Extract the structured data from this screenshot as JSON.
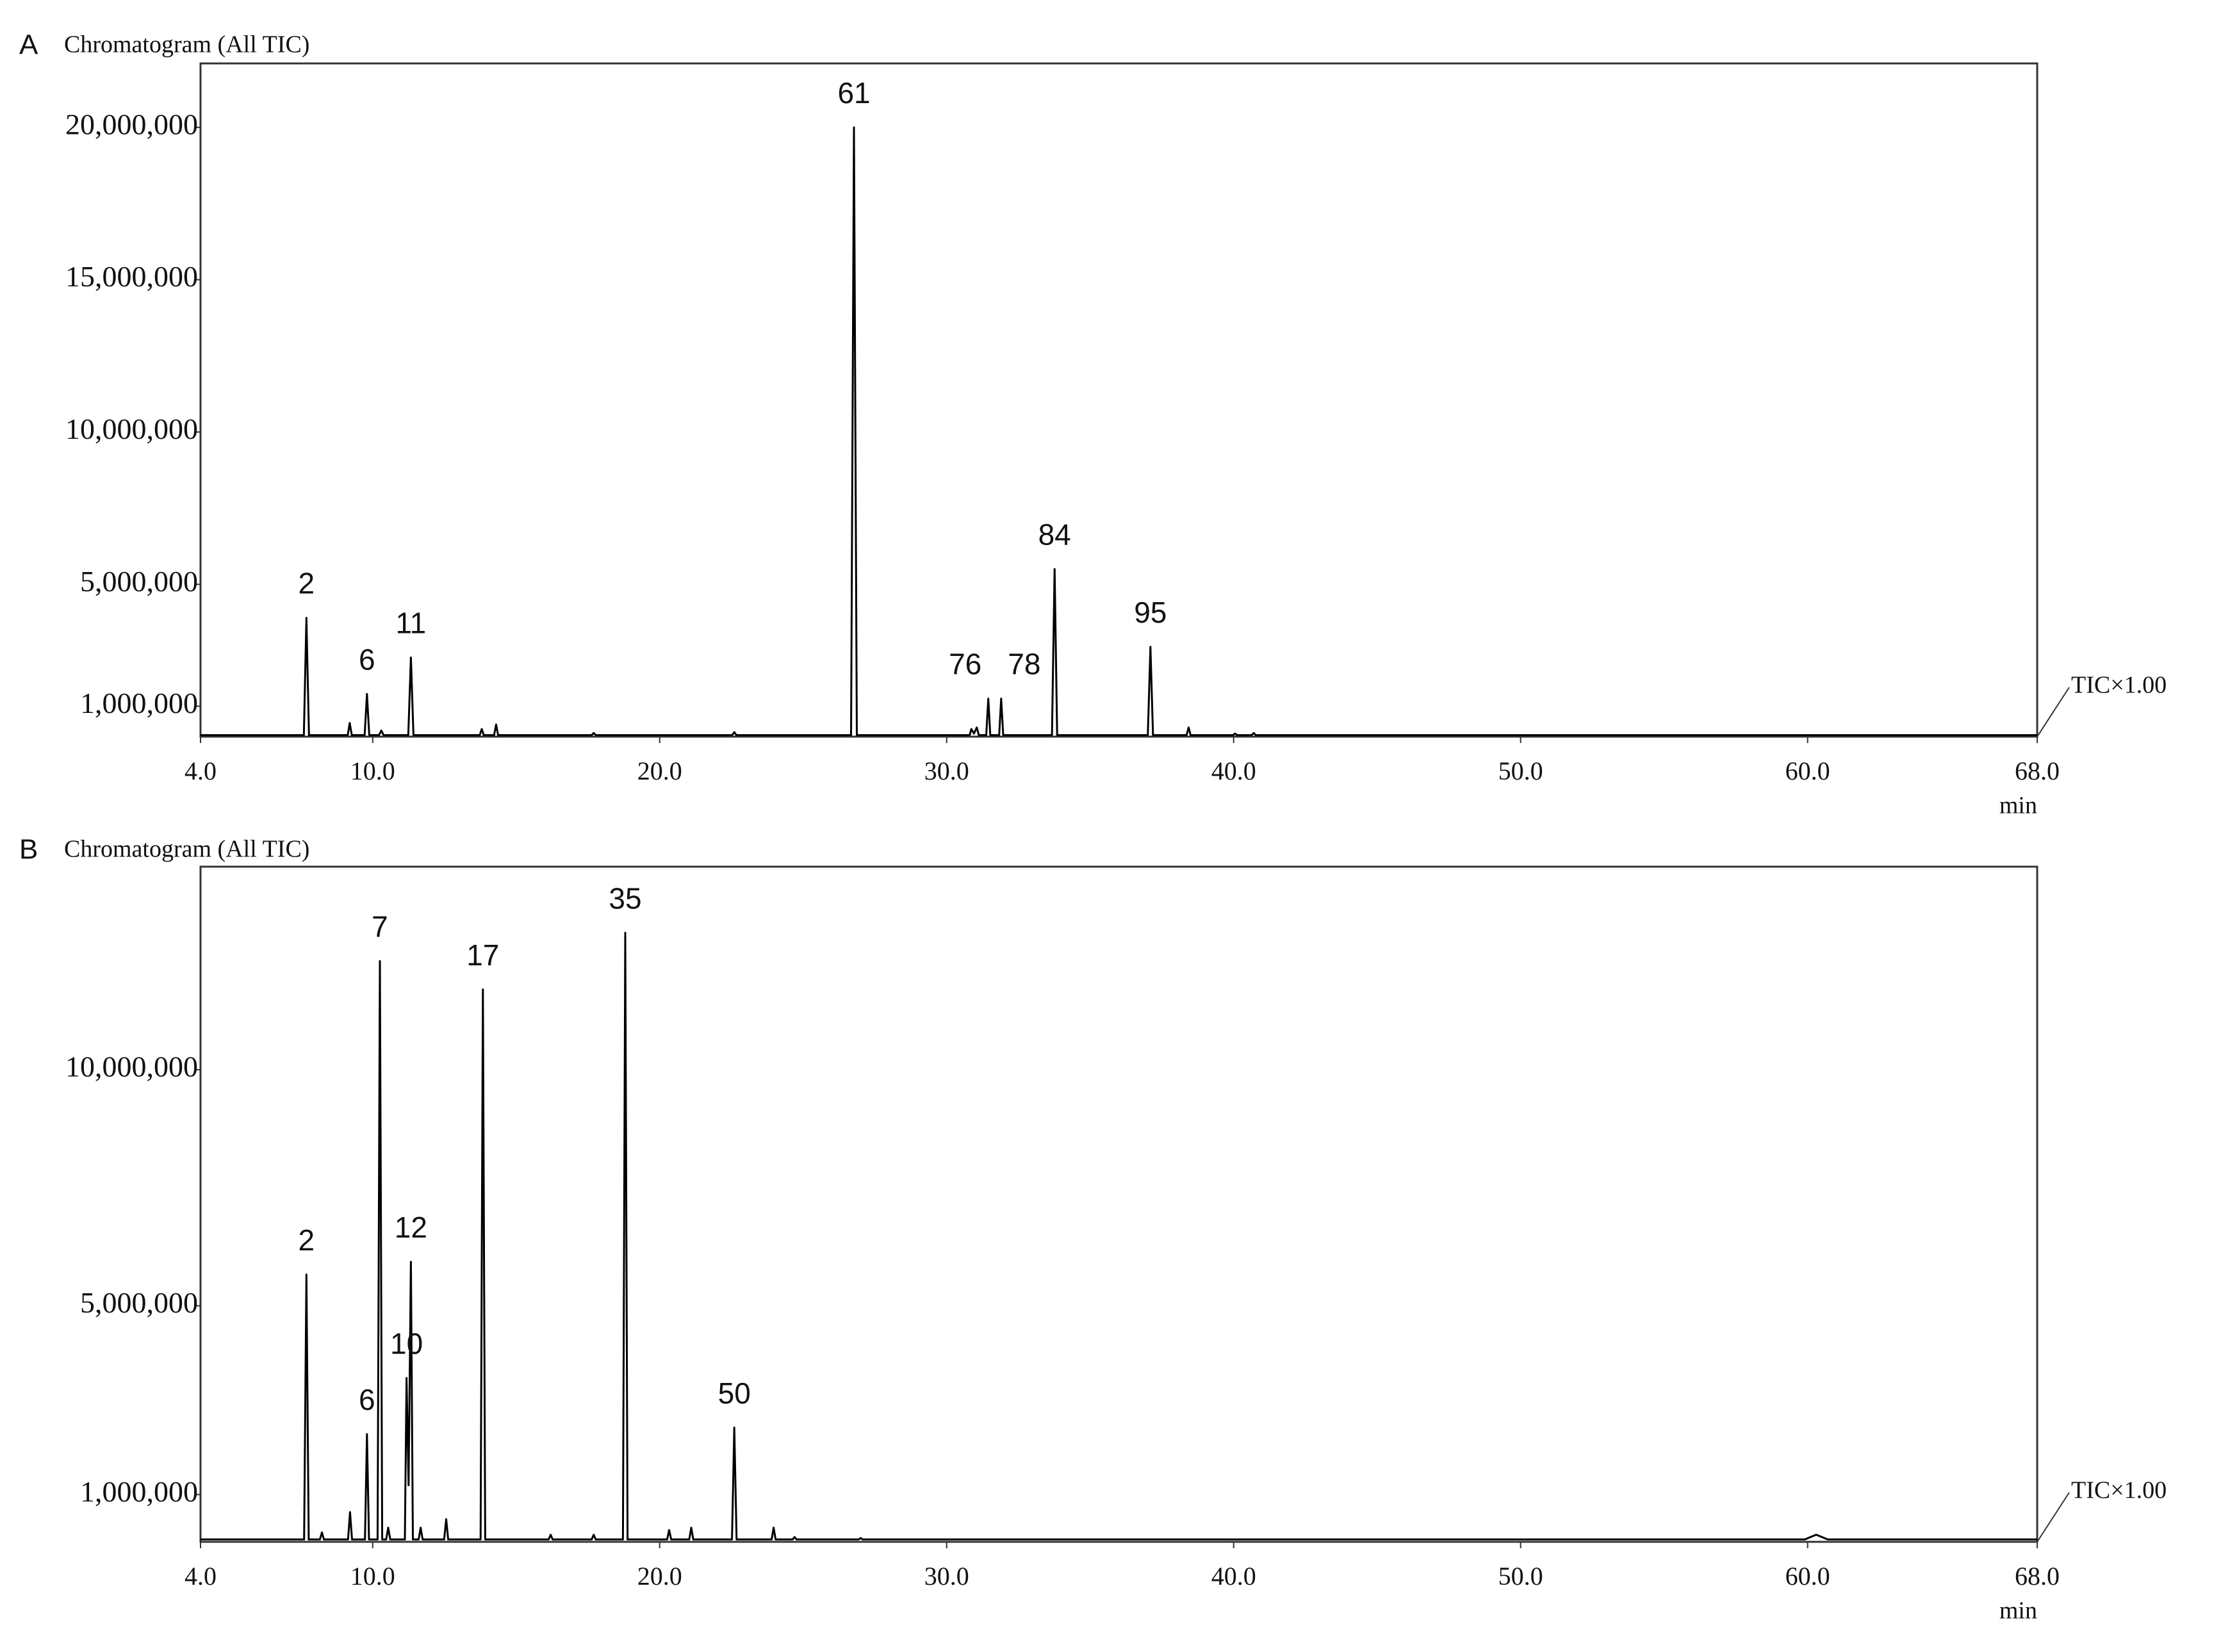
{
  "chart_data": [
    {
      "type": "line",
      "panel": "A",
      "title": "Chromatogram (All TIC)",
      "x_label": "min",
      "trace_label": "TIC×1.00",
      "color": "#000000",
      "xlim": [
        4,
        68
      ],
      "xticks": [
        {
          "value": 4,
          "label": "4.0"
        },
        {
          "value": 10,
          "label": "10.0"
        },
        {
          "value": 20,
          "label": "20.0"
        },
        {
          "value": 30,
          "label": "30.0"
        },
        {
          "value": 40,
          "label": "40.0"
        },
        {
          "value": 50,
          "label": "50.0"
        },
        {
          "value": 60,
          "label": "60.0"
        },
        {
          "value": 68,
          "label": "68.0"
        }
      ],
      "ylim": [
        0,
        22100000
      ],
      "yticks": [
        {
          "value": 1000000,
          "label": "1,000,000"
        },
        {
          "value": 5000000,
          "label": "5,000,000"
        },
        {
          "value": 10000000,
          "label": "10,000,000"
        },
        {
          "value": 15000000,
          "label": "15,000,000"
        },
        {
          "value": 20000000,
          "label": "20,000,000"
        }
      ],
      "x": [
        4.0,
        7.6,
        7.69,
        7.78,
        9.13,
        9.2,
        9.27,
        9.72,
        9.8,
        9.88,
        10.22,
        10.3,
        10.38,
        11.24,
        11.33,
        11.42,
        13.73,
        13.8,
        13.87,
        14.23,
        14.3,
        14.37,
        17.63,
        17.7,
        17.77,
        22.53,
        22.6,
        22.67,
        26.67,
        26.77,
        26.87,
        30.8,
        30.86,
        30.95,
        31.05,
        31.12,
        31.38,
        31.45,
        31.52,
        31.83,
        31.9,
        31.97,
        33.67,
        33.76,
        33.85,
        37.01,
        37.1,
        37.19,
        38.36,
        38.43,
        38.5,
        39.98,
        40.05,
        40.12,
        40.63,
        40.7,
        40.77,
        68.0
      ],
      "values": [
        50000,
        50000,
        3900000,
        50000,
        50000,
        450000,
        50000,
        50000,
        1400000,
        50000,
        50000,
        200000,
        50000,
        50000,
        2600000,
        50000,
        50000,
        250000,
        50000,
        50000,
        400000,
        50000,
        50000,
        120000,
        50000,
        50000,
        150000,
        50000,
        50000,
        20000000,
        50000,
        50000,
        250000,
        100000,
        300000,
        50000,
        50000,
        1250000,
        50000,
        50000,
        1250000,
        50000,
        50000,
        5500000,
        50000,
        50000,
        2950000,
        50000,
        50000,
        300000,
        50000,
        50000,
        100000,
        50000,
        50000,
        120000,
        50000,
        50000
      ],
      "annotations": [
        {
          "text": "2",
          "x": 7.69,
          "y": 3900000
        },
        {
          "text": "6",
          "x": 9.8,
          "y": 1400000
        },
        {
          "text": "11",
          "x": 11.33,
          "y": 2600000
        },
        {
          "text": "61",
          "x": 26.77,
          "y": 20000000
        },
        {
          "text": "76",
          "x": 31.45,
          "y": 1250000
        },
        {
          "text": "78",
          "x": 31.9,
          "y": 1250000
        },
        {
          "text": "84",
          "x": 33.76,
          "y": 5500000
        },
        {
          "text": "95",
          "x": 37.1,
          "y": 2950000
        }
      ]
    },
    {
      "type": "line",
      "panel": "B",
      "title": "Chromatogram (All TIC)",
      "x_label": "min",
      "trace_label": "TIC×1.00",
      "color": "#000000",
      "xlim": [
        4,
        68
      ],
      "xticks": [
        {
          "value": 4,
          "label": "4.0"
        },
        {
          "value": 10,
          "label": "10.0"
        },
        {
          "value": 20,
          "label": "20.0"
        },
        {
          "value": 30,
          "label": "30.0"
        },
        {
          "value": 40,
          "label": "40.0"
        },
        {
          "value": 50,
          "label": "50.0"
        },
        {
          "value": 60,
          "label": "60.0"
        },
        {
          "value": 68,
          "label": "68.0"
        }
      ],
      "ylim": [
        0,
        14300000
      ],
      "yticks": [
        {
          "value": 1000000,
          "label": "1,000,000"
        },
        {
          "value": 5000000,
          "label": "5,000,000"
        },
        {
          "value": 10000000,
          "label": "10,000,000"
        }
      ],
      "x": [
        4.0,
        7.61,
        7.69,
        7.77,
        8.16,
        8.23,
        8.3,
        9.14,
        9.21,
        9.28,
        9.73,
        9.8,
        9.87,
        10.17,
        10.25,
        10.33,
        10.47,
        10.54,
        10.61,
        11.12,
        11.18,
        11.25,
        11.33,
        11.4,
        11.6,
        11.67,
        11.74,
        12.49,
        12.56,
        12.63,
        13.76,
        13.84,
        13.92,
        16.13,
        16.2,
        16.27,
        17.63,
        17.7,
        17.77,
        18.72,
        18.8,
        18.88,
        20.26,
        20.33,
        20.4,
        21.03,
        21.1,
        21.17,
        22.52,
        22.6,
        22.68,
        23.9,
        23.97,
        24.04,
        24.63,
        24.7,
        24.77,
        26.93,
        27.0,
        27.07,
        59.9,
        60.3,
        60.7,
        68.0
      ],
      "values": [
        50000,
        50000,
        5660000,
        50000,
        50000,
        200000,
        50000,
        50000,
        630000,
        50000,
        50000,
        2280000,
        50000,
        50000,
        12300000,
        50000,
        50000,
        300000,
        50000,
        50000,
        3470000,
        1200000,
        5930000,
        50000,
        50000,
        300000,
        50000,
        50000,
        480000,
        50000,
        50000,
        11700000,
        50000,
        50000,
        150000,
        50000,
        50000,
        150000,
        50000,
        50000,
        12900000,
        50000,
        50000,
        250000,
        50000,
        50000,
        300000,
        50000,
        50000,
        2420000,
        50000,
        50000,
        300000,
        50000,
        50000,
        100000,
        50000,
        50000,
        80000,
        50000,
        50000,
        150000,
        50000,
        50000
      ],
      "annotations": [
        {
          "text": "2",
          "x": 7.69,
          "y": 5660000
        },
        {
          "text": "6",
          "x": 9.8,
          "y": 2280000
        },
        {
          "text": "7",
          "x": 10.25,
          "y": 12300000
        },
        {
          "text": "10",
          "x": 11.18,
          "y": 3470000
        },
        {
          "text": "12",
          "x": 11.33,
          "y": 5930000
        },
        {
          "text": "17",
          "x": 13.84,
          "y": 11700000
        },
        {
          "text": "35",
          "x": 18.8,
          "y": 12900000
        },
        {
          "text": "50",
          "x": 22.6,
          "y": 2420000
        }
      ]
    }
  ]
}
